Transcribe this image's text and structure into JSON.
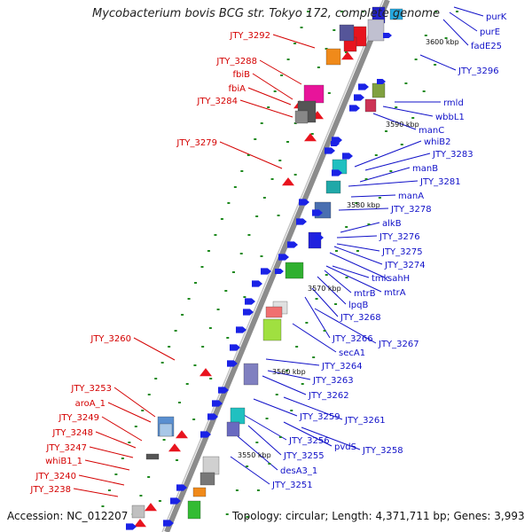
{
  "title": "Mycobacterium bovis BCG str. Tokyo 172, complete genome",
  "accession": "Accession: NC_012207",
  "summary": "Topology: circular; Length: 4,371,711 bp; Genes: 3,993",
  "colors": {
    "backbone": "#8c8c8c",
    "tick": "#1f8a1f",
    "label_left": "#d40000",
    "label_right": "#1010c8",
    "gene_red": "#e8141e",
    "gene_blue": "#1a22e6"
  },
  "kbp_labels": [
    "3600 kbp",
    "3590 kbp",
    "3580 kbp",
    "3570 kbp",
    "3560 kbp",
    "3550 kbp"
  ],
  "labels_left": [
    "JTY_3292",
    "JTY_3288",
    "fbiB",
    "fbiA",
    "JTY_3284",
    "JTY_3279",
    "JTY_3260",
    "JTY_3253",
    "aroA_1",
    "JTY_3249",
    "JTY_3248",
    "JTY_3247",
    "whiB1_1",
    "JTY_3240",
    "JTY_3238"
  ],
  "labels_right": [
    "purK",
    "purE",
    "fadE25",
    "JTY_3296",
    "rmld",
    "wbbL1",
    "manC",
    "whiB2",
    "JTY_3283",
    "manB",
    "JTY_3281",
    "manA",
    "JTY_3278",
    "alkB",
    "JTY_3276",
    "JTY_3275",
    "JTY_3274",
    "sahH",
    "tmk",
    "mtrA",
    "mtrB",
    "lpqB",
    "JTY_3268",
    "JTY_3266",
    "JTY_3267",
    "secA1",
    "JTY_3264",
    "JTY_3263",
    "JTY_3262",
    "JTY_3259",
    "JTY_3261",
    "JTY_3256",
    "pvdS",
    "JTY_3258",
    "JTY_3255",
    "desA3_1",
    "JTY_3251"
  ]
}
